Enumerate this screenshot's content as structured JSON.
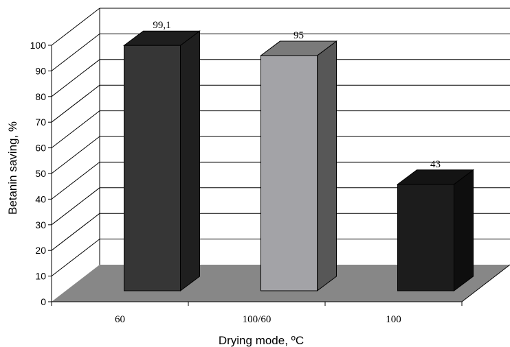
{
  "chart_data": {
    "type": "bar",
    "style": "3d",
    "categories": [
      "60",
      "100/60",
      "100"
    ],
    "values": [
      99.1,
      95,
      43
    ],
    "data_labels": [
      "99,1",
      "95",
      "43"
    ],
    "xlabel": "Drying mode, ºC",
    "ylabel": "Betanin saving, %",
    "ylim": [
      0,
      100
    ],
    "yticks": [
      0,
      10,
      20,
      30,
      40,
      50,
      60,
      70,
      80,
      90,
      100
    ],
    "grid": true,
    "legend": false,
    "colors": {
      "bars": [
        {
          "front": "#363636",
          "top": "#1e1e1e",
          "side": "#1f1f1f"
        },
        {
          "front": "#a3a3a7",
          "top": "#7a7a7a",
          "side": "#575757"
        },
        {
          "front": "#1c1c1c",
          "top": "#141414",
          "side": "#0e0e0e"
        }
      ],
      "floor": "#878787",
      "grid": "#000000"
    }
  }
}
